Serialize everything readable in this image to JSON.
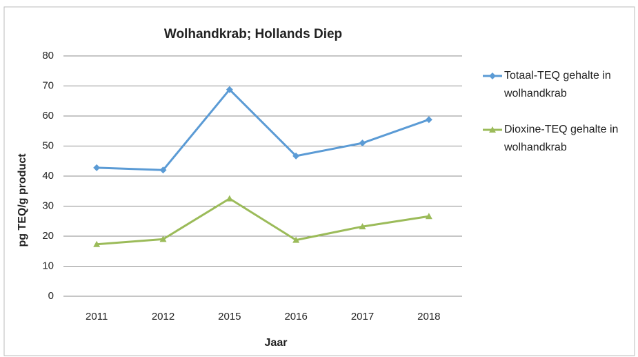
{
  "chart_data": {
    "type": "line",
    "title": "Wolhandkrab; Hollands Diep",
    "x_label": "Jaar",
    "y_label": "pg TEQ/g product",
    "categories": [
      "2011",
      "2012",
      "2015",
      "2016",
      "2017",
      "2018"
    ],
    "series": [
      {
        "name": "Totaal-TEQ gehalte in wolhandkrab",
        "color": "#5b9bd5",
        "marker": "diamond",
        "values": [
          42.8,
          42,
          68.8,
          46.7,
          51,
          58.8
        ]
      },
      {
        "name": "Dioxine-TEQ gehalte in wolhandkrab",
        "color": "#9bbb59",
        "marker": "triangle",
        "values": [
          17.3,
          19,
          32.5,
          18.7,
          23.2,
          26.6
        ]
      }
    ],
    "ylim": [
      0,
      80
    ],
    "yticks": [
      0,
      10,
      20,
      30,
      40,
      50,
      60,
      70,
      80
    ],
    "grid": true,
    "legend": "right"
  }
}
